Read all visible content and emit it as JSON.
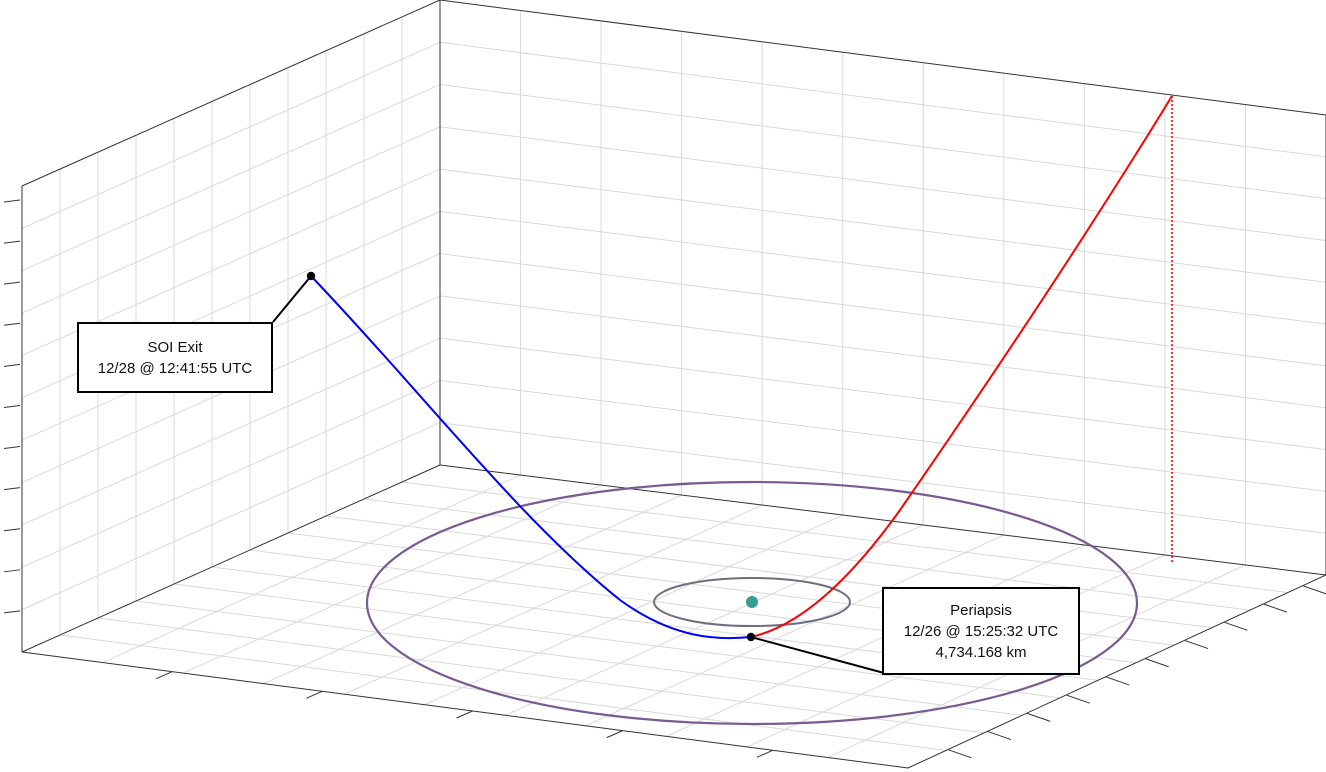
{
  "scene": {
    "colors": {
      "grid": "#d9d9d9",
      "frame": "#333333",
      "outgoing_trajectory": "#0000ff",
      "incoming_trajectory": "#ff0000",
      "drop_line": "#ff0000",
      "outer_orbit": "#7a5a92",
      "inner_orbit": "#6b6f7e",
      "body": "#3a9e8e",
      "marker": "#000000"
    },
    "markers": {
      "soi_exit": {
        "name": "soi-exit-marker"
      },
      "periapsis": {
        "name": "periapsis-marker"
      }
    }
  },
  "annotations": {
    "soi_exit": {
      "title": "SOI Exit",
      "time": "12/28 @ 12:41:55 UTC"
    },
    "periapsis": {
      "title": "Periapsis",
      "time": "12/26 @ 15:25:32 UTC",
      "altitude": "4,734.168 km"
    }
  }
}
